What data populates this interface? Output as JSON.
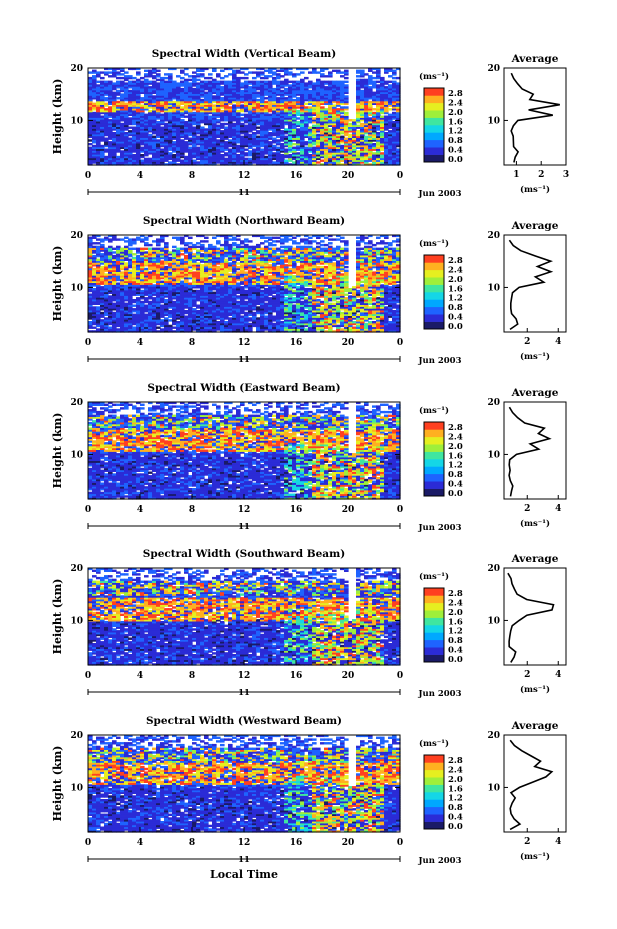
{
  "figure": {
    "xlabel": "Local Time",
    "xticks": [
      "0",
      "4",
      "8",
      "12",
      "16",
      "20",
      "0"
    ],
    "day_label": "11",
    "month_label": "Jun 2003",
    "ylabel": "Height (km)",
    "yticks": [
      "10",
      "20"
    ],
    "colorbar_unit": "(ms⁻¹)",
    "colorbar_ticks": [
      "0.0",
      "0.4",
      "0.8",
      "1.2",
      "1.6",
      "2.0",
      "2.4",
      "2.8"
    ],
    "profile_title": "Average",
    "profile_unit": "(ms⁻¹)",
    "colormap": [
      "#1a1a66",
      "#2b2bd6",
      "#1e63ff",
      "#00a8ff",
      "#14d6e6",
      "#3fe6a0",
      "#9fef3a",
      "#e6ef20",
      "#ffb020",
      "#ff4020"
    ]
  },
  "chart_data": [
    {
      "type": "heatmap",
      "title": "Spectral Width (Vertical Beam)",
      "x_range_hours": [
        0,
        24
      ],
      "y_range_km": [
        1.5,
        20
      ],
      "color_range": [
        0,
        3
      ],
      "profile": {
        "xticks": [
          "1",
          "2",
          "3"
        ],
        "x_range": [
          0.5,
          3
        ],
        "heights_km": [
          2,
          3,
          4,
          5,
          6,
          7,
          8,
          9,
          10,
          11,
          12,
          13,
          14,
          15,
          16,
          17,
          18,
          19
        ],
        "values": [
          0.9,
          1.0,
          1.1,
          0.9,
          0.85,
          0.9,
          0.8,
          0.85,
          1.0,
          2.4,
          1.6,
          2.8,
          1.5,
          1.8,
          1.2,
          1.0,
          0.9,
          0.85
        ]
      }
    },
    {
      "type": "heatmap",
      "title": "Spectral Width (Northward Beam)",
      "x_range_hours": [
        0,
        24
      ],
      "y_range_km": [
        1.5,
        20
      ],
      "color_range": [
        0,
        3
      ],
      "profile": {
        "xticks": [
          "2",
          "4"
        ],
        "x_range": [
          0.5,
          4.5
        ],
        "heights_km": [
          2,
          3,
          4,
          5,
          6,
          7,
          8,
          9,
          10,
          11,
          12,
          13,
          14,
          15,
          16,
          17,
          18,
          19
        ],
        "values": [
          0.9,
          1.4,
          1.2,
          1.0,
          0.9,
          0.9,
          1.0,
          1.1,
          1.5,
          3.2,
          2.6,
          3.6,
          2.8,
          3.4,
          2.4,
          1.6,
          1.1,
          0.9
        ]
      }
    },
    {
      "type": "heatmap",
      "title": "Spectral Width (Eastward Beam)",
      "x_range_hours": [
        0,
        24
      ],
      "y_range_km": [
        1.5,
        20
      ],
      "color_range": [
        0,
        3
      ],
      "profile": {
        "xticks": [
          "2",
          "4"
        ],
        "x_range": [
          0.5,
          4.5
        ],
        "heights_km": [
          2,
          3,
          4,
          5,
          6,
          7,
          8,
          9,
          10,
          11,
          12,
          13,
          14,
          15,
          16,
          17,
          18,
          19
        ],
        "values": [
          0.9,
          1.0,
          1.1,
          0.9,
          0.8,
          0.9,
          0.85,
          0.9,
          1.3,
          2.8,
          2.2,
          3.4,
          2.6,
          3.2,
          1.8,
          1.3,
          1.0,
          0.8
        ]
      }
    },
    {
      "type": "heatmap",
      "title": "Spectral Width (Southward Beam)",
      "x_range_hours": [
        0,
        24
      ],
      "y_range_km": [
        1.5,
        20
      ],
      "color_range": [
        0,
        3
      ],
      "profile": {
        "xticks": [
          "2",
          "4"
        ],
        "x_range": [
          0.5,
          4.5
        ],
        "heights_km": [
          2,
          3,
          4,
          5,
          6,
          7,
          8,
          9,
          10,
          11,
          12,
          13,
          14,
          15,
          16,
          17,
          18,
          19
        ],
        "values": [
          0.9,
          1.1,
          1.2,
          0.9,
          0.8,
          0.85,
          0.9,
          1.0,
          1.4,
          2.0,
          3.6,
          3.8,
          2.0,
          1.4,
          1.2,
          1.0,
          0.9,
          0.8
        ]
      }
    },
    {
      "type": "heatmap",
      "title": "Spectral Width (Westward Beam)",
      "x_range_hours": [
        0,
        24
      ],
      "y_range_km": [
        1.5,
        20
      ],
      "color_range": [
        0,
        3
      ],
      "profile": {
        "xticks": [
          "2",
          "4"
        ],
        "x_range": [
          0.5,
          4.5
        ],
        "heights_km": [
          2,
          3,
          4,
          5,
          6,
          7,
          8,
          9,
          10,
          11,
          12,
          13,
          14,
          15,
          16,
          17,
          18,
          19
        ],
        "values": [
          0.9,
          1.5,
          1.2,
          1.0,
          0.9,
          1.1,
          1.3,
          1.0,
          1.4,
          2.4,
          3.0,
          3.6,
          2.6,
          3.0,
          2.2,
          1.6,
          1.2,
          0.9
        ]
      }
    }
  ]
}
